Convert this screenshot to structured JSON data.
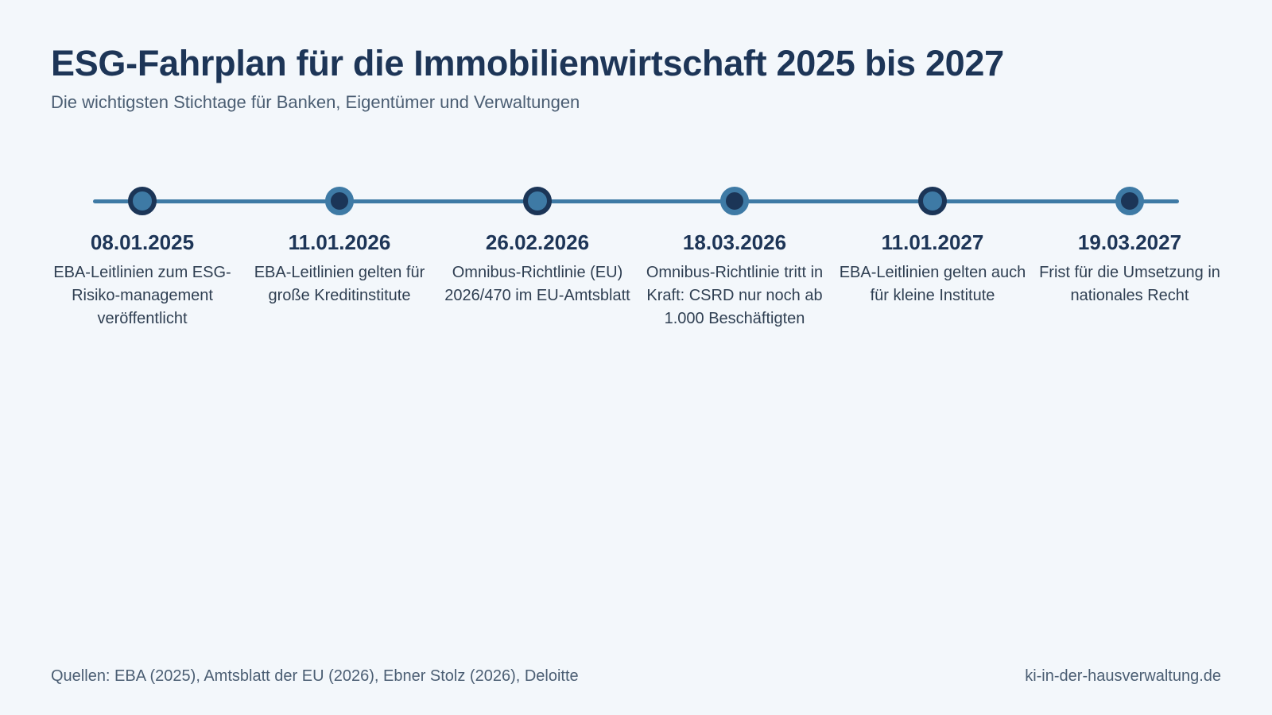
{
  "header": {
    "title": "ESG-Fahrplan für die Immobilienwirtschaft 2025 bis 2027",
    "subtitle": "Die wichtigsten Stichtage für Banken, Eigentümer und Verwaltungen"
  },
  "colors": {
    "background": "#f3f7fb",
    "navy": "#1b3557",
    "accent_blue": "#3e7aa5"
  },
  "timeline": {
    "milestones": [
      {
        "date": "08.01.2025",
        "description": "EBA-Leitlinien zum ESG-Risiko-management veröffentlicht",
        "style": "dark"
      },
      {
        "date": "11.01.2026",
        "description": "EBA-Leitlinien gelten für große Kreditinstitute",
        "style": "light"
      },
      {
        "date": "26.02.2026",
        "description": "Omnibus-Richtlinie (EU) 2026/470 im EU-Amtsblatt",
        "style": "dark"
      },
      {
        "date": "18.03.2026",
        "description": "Omnibus-Richtlinie tritt in Kraft: CSRD nur noch ab 1.000 Beschäftigten",
        "style": "light"
      },
      {
        "date": "11.01.2027",
        "description": "EBA-Leitlinien gelten auch für kleine Institute",
        "style": "dark"
      },
      {
        "date": "19.03.2027",
        "description": "Frist für die Umsetzung in nationales Recht",
        "style": "light"
      }
    ]
  },
  "footer": {
    "sources": "Quellen: EBA (2025), Amtsblatt der EU (2026), Ebner Stolz (2026), Deloitte",
    "website": "ki-in-der-hausverwaltung.de"
  }
}
